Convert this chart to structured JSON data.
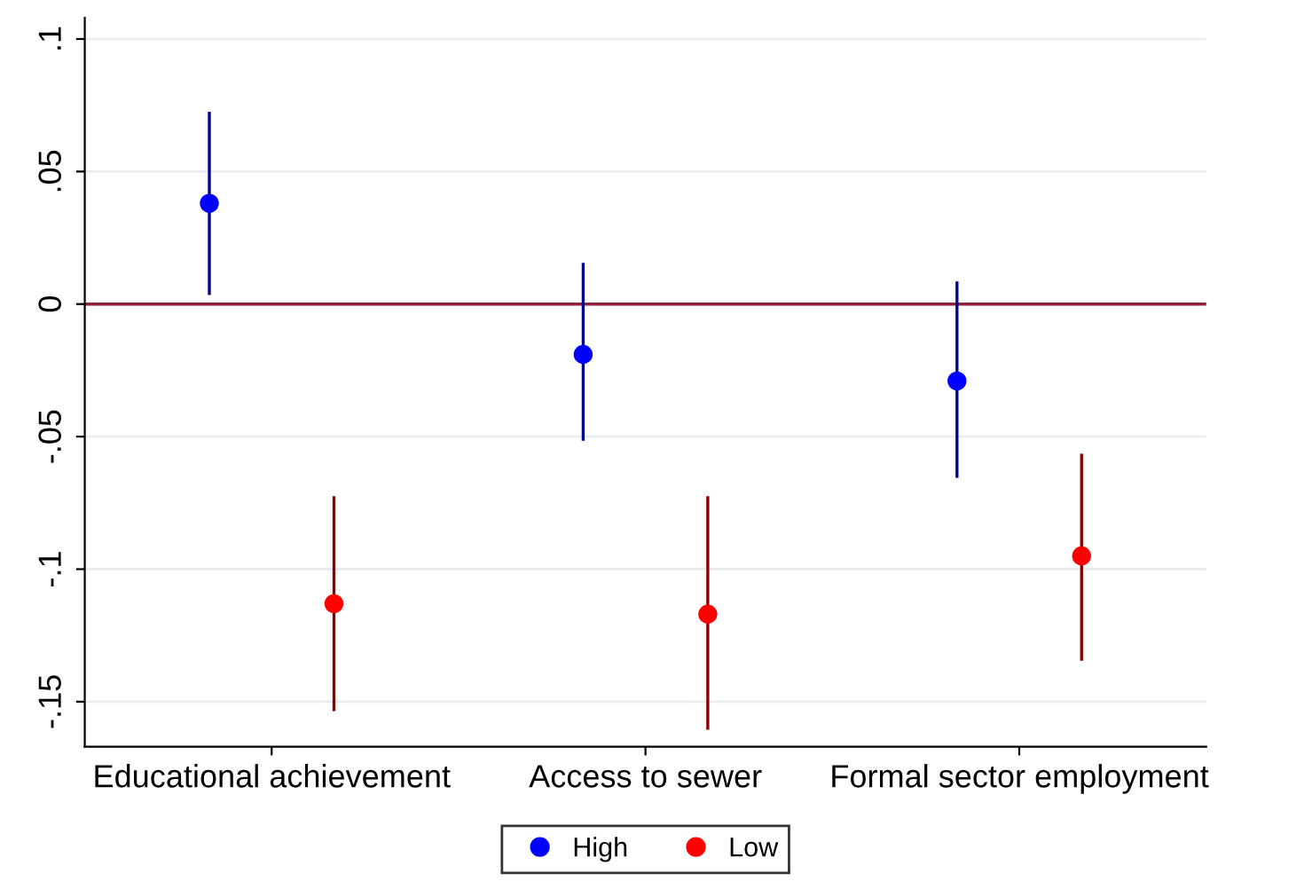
{
  "chart_data": {
    "type": "scatter",
    "categories": [
      "Educational achievement",
      "Access to sewer",
      "Formal sector employment"
    ],
    "series": [
      {
        "name": "High",
        "color": "#0000ff",
        "values": [
          0.038,
          -0.019,
          -0.029
        ],
        "errors": [
          [
            0.004,
            0.072
          ],
          [
            -0.051,
            0.015
          ],
          [
            -0.065,
            0.008
          ]
        ]
      },
      {
        "name": "Low",
        "color": "#ff0000",
        "values": [
          -0.113,
          -0.117,
          -0.095
        ],
        "errors": [
          [
            -0.153,
            -0.073
          ],
          [
            -0.16,
            -0.073
          ],
          [
            -0.134,
            -0.057
          ]
        ]
      }
    ],
    "ylim": [
      -0.167,
      0.108
    ],
    "yticks": [
      {
        "value": 0.1,
        "label": ".1"
      },
      {
        "value": 0.05,
        "label": ".05"
      },
      0,
      {
        "value": -0.05,
        "label": "-.05"
      },
      {
        "value": -0.1,
        "label": "-.1"
      },
      {
        "value": -0.15,
        "label": "-.15"
      }
    ],
    "ref_lines": [
      {
        "axis": "y",
        "value": 0,
        "color": "#90203c"
      }
    ],
    "grid": "y",
    "legend": "bottom",
    "marker": "circle"
  }
}
